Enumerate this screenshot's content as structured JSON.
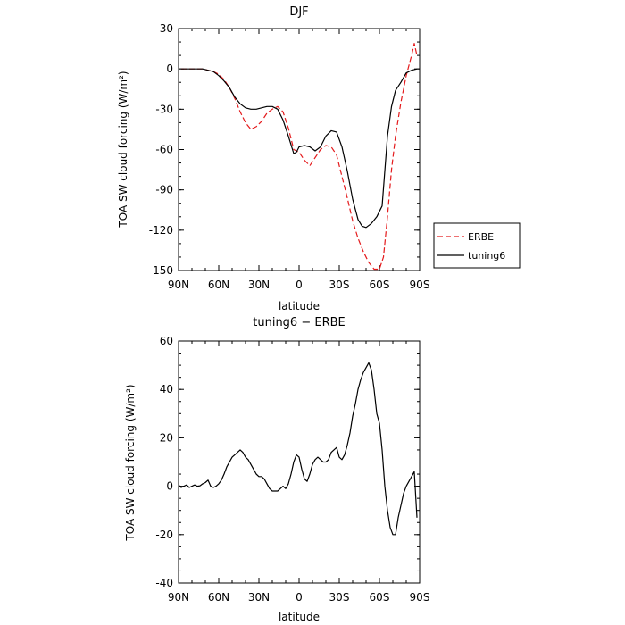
{
  "chart_data": [
    {
      "type": "line",
      "title": "DJF",
      "xlabel": "latitude",
      "ylabel": "TOA SW cloud forcing (W/m²)",
      "x_tick_labels": [
        "90N",
        "60N",
        "30N",
        "0",
        "30S",
        "60S",
        "90S"
      ],
      "x_tick_values": [
        90,
        60,
        30,
        0,
        -30,
        -60,
        -90
      ],
      "xlim": [
        90,
        -90
      ],
      "y_tick_labels": [
        "30",
        "0",
        "-30",
        "-60",
        "-90",
        "-120",
        "-150"
      ],
      "y_tick_values": [
        30,
        0,
        -30,
        -60,
        -90,
        -120,
        -150
      ],
      "ylim": [
        -150,
        30
      ],
      "legend_position": "right",
      "series": [
        {
          "name": "ERBE",
          "color": "#e41a1c",
          "dash": "dashed",
          "x": [
            88,
            84,
            80,
            76,
            72,
            68,
            64,
            60,
            56,
            52,
            48,
            44,
            40,
            36,
            32,
            28,
            24,
            20,
            16,
            12,
            8,
            4,
            0,
            -4,
            -8,
            -12,
            -16,
            -20,
            -24,
            -28,
            -32,
            -36,
            -40,
            -44,
            -48,
            -52,
            -56,
            -60,
            -63,
            -66,
            -69,
            -72,
            -76,
            -80,
            -84,
            -86,
            -88
          ],
          "y": [
            0,
            0,
            0,
            0,
            0,
            -1,
            -2,
            -4,
            -8,
            -14,
            -22,
            -32,
            -40,
            -45,
            -43,
            -39,
            -33,
            -30,
            -28,
            -32,
            -44,
            -60,
            -62,
            -68,
            -72,
            -66,
            -60,
            -57,
            -58,
            -64,
            -80,
            -96,
            -113,
            -126,
            -136,
            -144,
            -149,
            -149,
            -140,
            -110,
            -75,
            -50,
            -25,
            -5,
            10,
            19,
            10
          ]
        },
        {
          "name": "tuning6",
          "color": "#000000",
          "dash": "solid",
          "x": [
            88,
            84,
            80,
            76,
            72,
            68,
            64,
            60,
            56,
            52,
            48,
            44,
            40,
            36,
            32,
            28,
            24,
            20,
            16,
            12,
            8,
            4,
            2,
            0,
            -4,
            -8,
            -12,
            -16,
            -20,
            -24,
            -28,
            -32,
            -36,
            -40,
            -44,
            -47,
            -50,
            -54,
            -58,
            -62,
            -66,
            -69,
            -72,
            -76,
            -80,
            -84,
            -88
          ],
          "y": [
            0,
            0,
            0,
            0,
            0,
            -1,
            -2,
            -5,
            -9,
            -14,
            -21,
            -26,
            -29,
            -30,
            -30,
            -29,
            -28,
            -28,
            -30,
            -38,
            -50,
            -63,
            -62,
            -58,
            -57,
            -58,
            -61,
            -58,
            -50,
            -46,
            -47,
            -58,
            -76,
            -97,
            -112,
            -117,
            -118,
            -115,
            -110,
            -102,
            -50,
            -28,
            -16,
            -10,
            -3,
            -1,
            0
          ]
        }
      ]
    },
    {
      "type": "line",
      "title": "tuning6 − ERBE",
      "xlabel": "latitude",
      "ylabel": "TOA SW cloud forcing (W/m²)",
      "x_tick_labels": [
        "90N",
        "60N",
        "30N",
        "0",
        "30S",
        "60S",
        "90S"
      ],
      "x_tick_values": [
        90,
        60,
        30,
        0,
        -30,
        -60,
        -90
      ],
      "xlim": [
        90,
        -90
      ],
      "y_tick_labels": [
        "60",
        "40",
        "20",
        "0",
        "-20",
        "-40"
      ],
      "y_tick_values": [
        60,
        40,
        20,
        0,
        -20,
        -40
      ],
      "ylim": [
        -40,
        60
      ],
      "series": [
        {
          "color": "#000000",
          "dash": "solid",
          "x": [
            90,
            88,
            86,
            84,
            82,
            80,
            78,
            76,
            74,
            72,
            70,
            68,
            66,
            64,
            62,
            60,
            58,
            56,
            54,
            52,
            50,
            48,
            46,
            44,
            42,
            40,
            38,
            36,
            34,
            32,
            30,
            28,
            26,
            24,
            22,
            20,
            18,
            16,
            14,
            12,
            10,
            8,
            6,
            4,
            2,
            0,
            -2,
            -4,
            -6,
            -8,
            -10,
            -12,
            -14,
            -16,
            -18,
            -20,
            -22,
            -24,
            -26,
            -28,
            -30,
            -32,
            -34,
            -36,
            -38,
            -40,
            -42,
            -44,
            -46,
            -48,
            -50,
            -52,
            -54,
            -56,
            -58,
            -60,
            -62,
            -64,
            -66,
            -68,
            -70,
            -72,
            -74,
            -76,
            -78,
            -80,
            -82,
            -84,
            -86,
            -88
          ],
          "y": [
            0.5,
            -0.5,
            0,
            0.5,
            -0.5,
            0,
            0.5,
            0,
            0.2,
            1,
            1.5,
            2.5,
            0,
            -0.5,
            0,
            1,
            2.5,
            5,
            8,
            10,
            12,
            13,
            14,
            15,
            14,
            12,
            11,
            9,
            7,
            5,
            4,
            4,
            3,
            1,
            -1,
            -2,
            -2,
            -2,
            -1,
            0,
            -1,
            1,
            5,
            10,
            13,
            12,
            7,
            3,
            2,
            5,
            9,
            11,
            12,
            11,
            10,
            10,
            11,
            14,
            15,
            16,
            12,
            11,
            13,
            17,
            22,
            29,
            34,
            40,
            44,
            47,
            49,
            51,
            48,
            40,
            30,
            26,
            15,
            0,
            -10,
            -17,
            -20,
            -20,
            -13,
            -8,
            -3,
            0,
            2,
            4,
            6,
            -13
          ]
        }
      ]
    }
  ]
}
